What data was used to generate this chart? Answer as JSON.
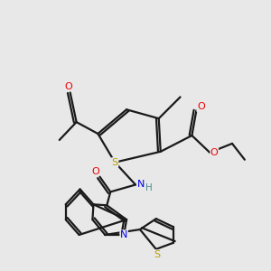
{
  "background_color": "#e8e8e8",
  "atom_colors": {
    "S": "#b8a000",
    "N": "#0000ee",
    "O": "#ee0000",
    "C": "#000000",
    "H": "#4a9090"
  },
  "bond_color": "#1a1a1a",
  "bond_width": 1.6,
  "figsize": [
    3.0,
    3.0
  ],
  "dpi": 100
}
